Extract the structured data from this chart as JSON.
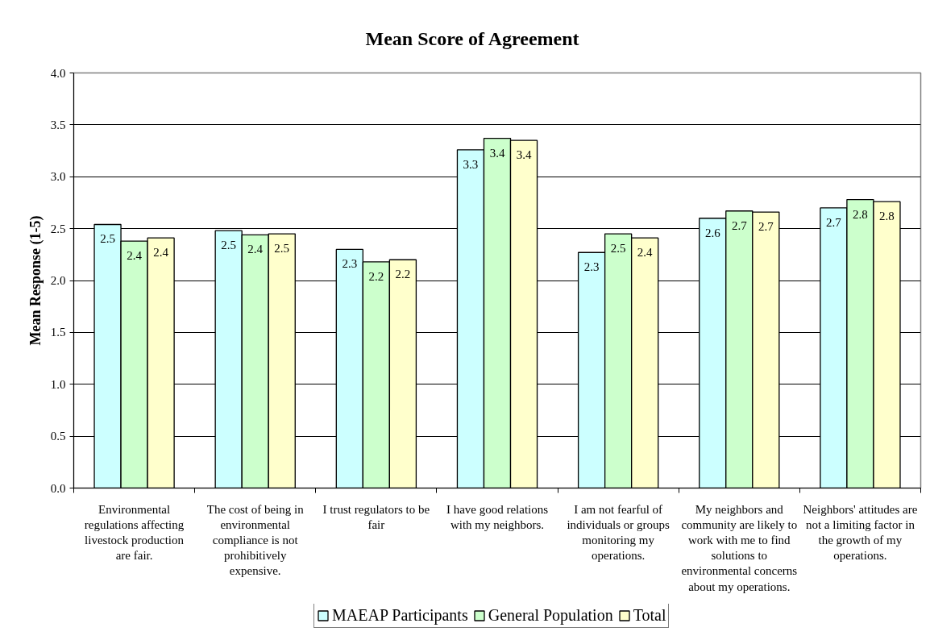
{
  "chart_data": {
    "type": "bar",
    "title": "Mean Score of Agreement",
    "ylabel": "Mean Response (1-5)",
    "categories": [
      "Environmental regulations affecting livestock production are fair.",
      "The cost of being in environmental compliance is not prohibitively expensive.",
      "I trust regulators to be fair",
      "I have good relations with my neighbors.",
      "I am not fearful of individuals or groups monitoring my operations.",
      "My neighbors and community are likely to work with me to find solutions to environmental concerns about my operations.",
      "Neighbors' attitudes are not a limiting factor in the growth of my operations."
    ],
    "series": [
      {
        "name": "MAEAP Participants",
        "color": "#ccffff",
        "values": [
          2.54,
          2.48,
          2.3,
          3.26,
          2.27,
          2.6,
          2.7
        ],
        "value_labels": [
          "2.5",
          "2.5",
          "2.3",
          "3.3",
          "2.3",
          "2.6",
          "2.7"
        ]
      },
      {
        "name": "General Population",
        "color": "#ccffcc",
        "values": [
          2.38,
          2.44,
          2.18,
          3.37,
          2.45,
          2.67,
          2.78
        ],
        "value_labels": [
          "2.4",
          "2.4",
          "2.2",
          "3.4",
          "2.5",
          "2.7",
          "2.8"
        ]
      },
      {
        "name": "Total",
        "color": "#ffffcc",
        "values": [
          2.41,
          2.45,
          2.2,
          3.35,
          2.41,
          2.66,
          2.76
        ],
        "value_labels": [
          "2.4",
          "2.5",
          "2.2",
          "3.4",
          "2.4",
          "2.7",
          "2.8"
        ]
      }
    ],
    "ylim": [
      0,
      4
    ],
    "yticks": [
      {
        "value": 0,
        "label": "0.0"
      },
      0.5,
      {
        "value": 1,
        "label": "1.0"
      },
      1.5,
      {
        "value": 2,
        "label": "2.0"
      },
      2.5,
      {
        "value": 3,
        "label": "3.0"
      },
      3.5,
      {
        "value": 4,
        "label": "4.0"
      }
    ],
    "grid": "y",
    "legend": "bottom"
  }
}
